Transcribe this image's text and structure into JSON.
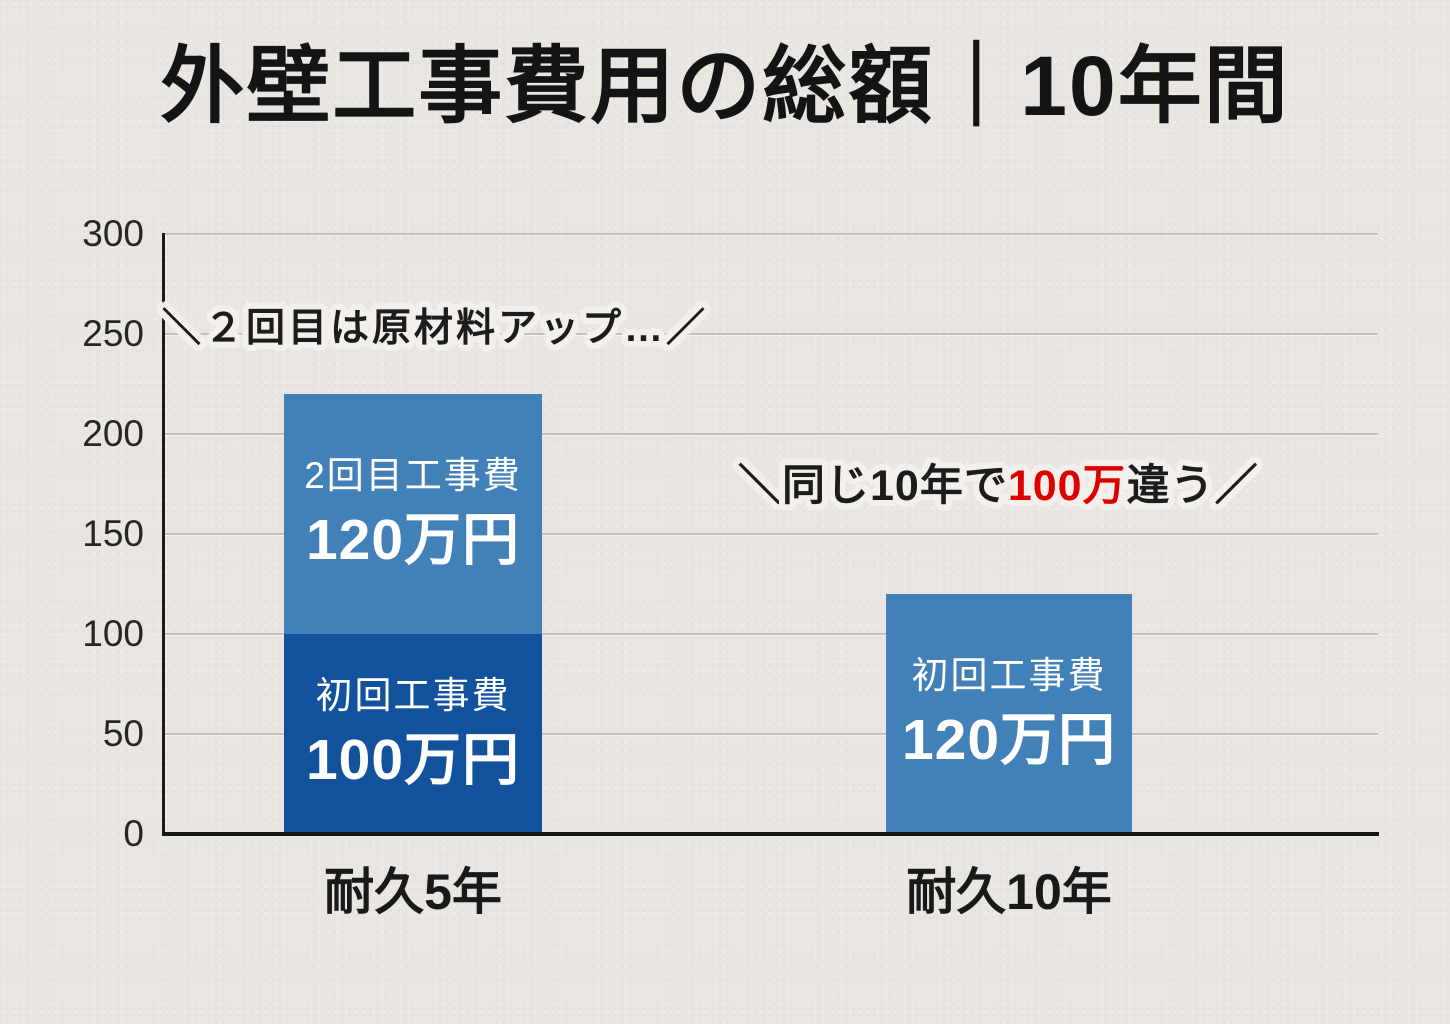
{
  "title": "外壁工事費用の総額｜10年間",
  "colors": {
    "background": "#e9e5e1",
    "first_cost_dark_blue": "#12529c",
    "light_blue": "#4280b8",
    "highlight_red": "#dc0000",
    "axis_black": "#161616",
    "gridline_gray": "#c3bfb9"
  },
  "chart_data": {
    "type": "bar",
    "stacked": true,
    "title": "外壁工事費用の総額｜10年間",
    "unit": "万円",
    "categories": [
      "耐久5年",
      "耐久10年"
    ],
    "y_axis": {
      "min": 0,
      "max": 300,
      "step": 50,
      "tick_labels": [
        "300",
        "250",
        "200",
        "150",
        "100",
        "50",
        "0"
      ]
    },
    "grid": true,
    "legend": false,
    "bars": [
      {
        "category": "耐久5年",
        "total": 220,
        "segments": [
          {
            "name": "初回工事費",
            "value": 100,
            "value_label": "100万円",
            "color": "#12529c"
          },
          {
            "name": "2回目工事費",
            "value": 120,
            "value_label": "120万円",
            "color": "#4280b8"
          }
        ]
      },
      {
        "category": "耐久10年",
        "total": 120,
        "segments": [
          {
            "name": "初回工事費",
            "value": 120,
            "value_label": "120万円",
            "color": "#4280b8"
          }
        ]
      }
    ],
    "annotations": [
      {
        "prefix": "＼",
        "text": "２回目は原材料アップ…",
        "suffix": "／",
        "color": "#1c1c1c"
      },
      {
        "prefix": "＼",
        "text_before": "同じ10年で",
        "highlight": "100万",
        "text_after": "違う",
        "suffix": "／",
        "highlight_color": "#dc0000",
        "color": "#1c1c1c"
      }
    ]
  }
}
